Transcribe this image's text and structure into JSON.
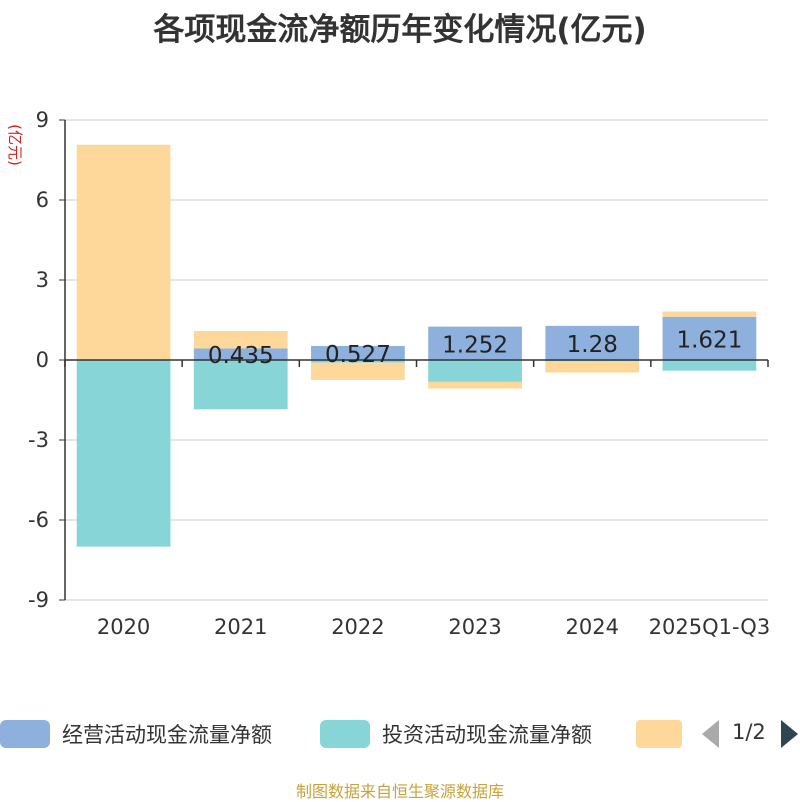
{
  "title": "各项现金流净额历年变化情况(亿元)",
  "source": "制图数据来自恒生聚源数据库",
  "legend_pager": {
    "text": "1/2",
    "prev_icon": "triangle-left-icon",
    "next_icon": "triangle-right-icon"
  },
  "chart_data": {
    "type": "bar",
    "stacked": true,
    "title": "各项现金流净额历年变化情况(亿元)",
    "ylabel": "(亿元)",
    "ylim": [
      -9,
      9
    ],
    "yticks": [
      9,
      6,
      3,
      0,
      -3,
      -6,
      -9
    ],
    "grid": true,
    "legend_position": "bottom",
    "categories": [
      "2020",
      "2021",
      "2022",
      "2023",
      "2024",
      "2025Q1-Q3"
    ],
    "series": [
      {
        "name": "经营活动现金流量净额",
        "color": "#8eb0dc",
        "values": [
          0.02,
          0.435,
          0.527,
          1.252,
          1.28,
          1.621
        ],
        "labels": [
          "",
          "0.435",
          "0.527",
          "1.252",
          "1.28",
          "1.621"
        ]
      },
      {
        "name": "投资活动现金流量净额",
        "color": "#88d5d8",
        "values": [
          -7.0,
          -1.85,
          -0.1,
          -0.82,
          -0.05,
          -0.4
        ]
      },
      {
        "name": "",
        "color": "#fdd89a",
        "values": [
          8.05,
          0.65,
          -0.65,
          -0.25,
          -0.42,
          0.2
        ]
      }
    ]
  }
}
